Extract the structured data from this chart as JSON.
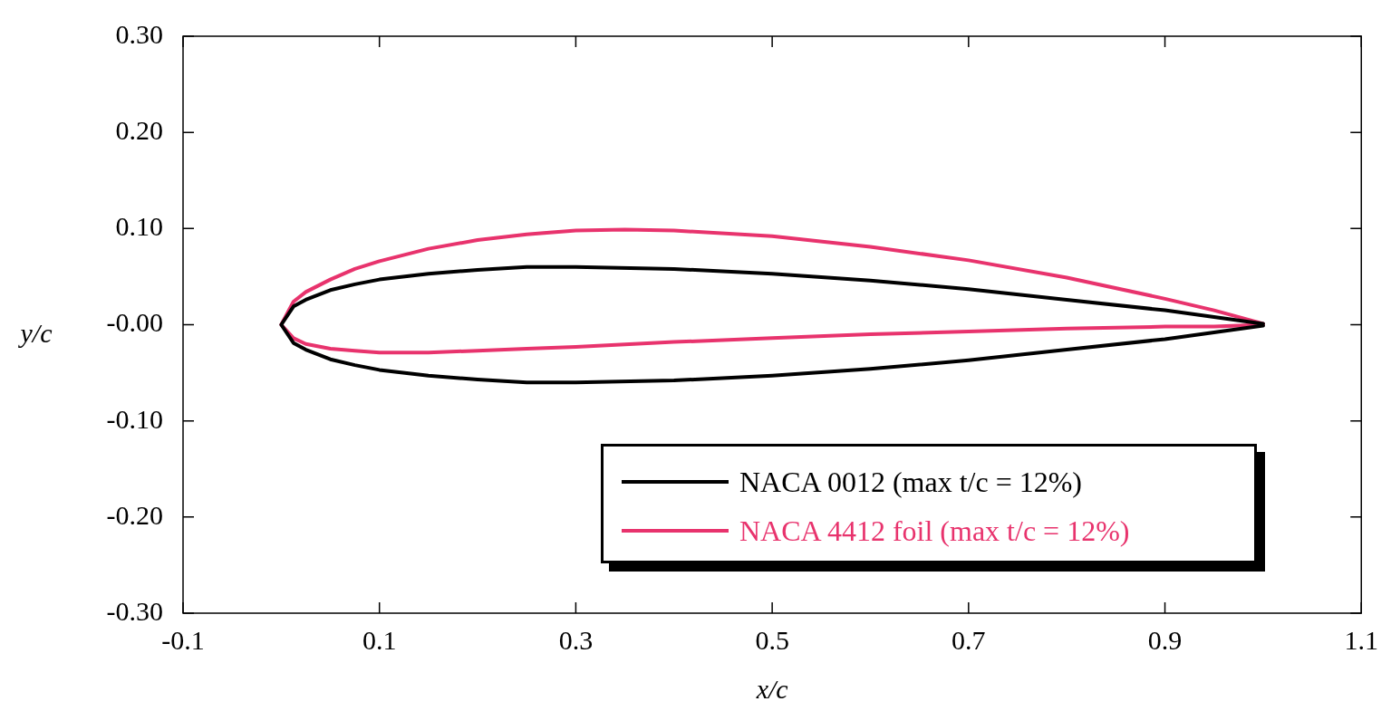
{
  "chart_data": {
    "type": "line",
    "xlabel": "x/c",
    "ylabel": "y/c",
    "xlim": [
      -0.1,
      1.1
    ],
    "xticks": [
      -0.1,
      0.1,
      0.3,
      0.5,
      0.7,
      0.9,
      1.1
    ],
    "ylim": [
      -0.3,
      0.3
    ],
    "yticks": [
      {
        "value": 0.3,
        "label": "0.30"
      },
      {
        "value": 0.2,
        "label": "0.20"
      },
      {
        "value": 0.1,
        "label": "0.10"
      },
      {
        "value": 0,
        "label": "-0.00"
      },
      {
        "value": -0.1,
        "label": "-0.10"
      },
      {
        "value": -0.2,
        "label": "-0.20"
      },
      {
        "value": -0.3,
        "label": "-0.30"
      }
    ],
    "grid": false,
    "legend": "bottom right",
    "marker": "none",
    "line_style": "solid",
    "series": [
      {
        "name": "NACA 0012 (max t/c = 12%)",
        "color": "#000000",
        "x": [
          1.0,
          0.95,
          0.9,
          0.8,
          0.7,
          0.6,
          0.5,
          0.4,
          0.3,
          0.25,
          0.2,
          0.15,
          0.1,
          0.075,
          0.05,
          0.025,
          0.0125,
          0.0,
          0.0125,
          0.025,
          0.05,
          0.075,
          0.1,
          0.15,
          0.2,
          0.25,
          0.3,
          0.4,
          0.5,
          0.6,
          0.7,
          0.8,
          0.9,
          0.95,
          1.0
        ],
        "values": [
          0.001,
          0.008,
          0.015,
          0.026,
          0.037,
          0.046,
          0.053,
          0.058,
          0.06,
          0.06,
          0.057,
          0.053,
          0.047,
          0.042,
          0.036,
          0.026,
          0.019,
          0.0,
          -0.019,
          -0.026,
          -0.036,
          -0.042,
          -0.047,
          -0.053,
          -0.057,
          -0.06,
          -0.06,
          -0.058,
          -0.053,
          -0.046,
          -0.037,
          -0.026,
          -0.015,
          -0.008,
          -0.001
        ]
      },
      {
        "name": "NACA 4412 foil (max t/c = 12%)",
        "color": "#e8336d",
        "x": [
          1.0,
          0.95,
          0.9,
          0.8,
          0.7,
          0.6,
          0.5,
          0.4,
          0.35,
          0.3,
          0.25,
          0.2,
          0.15,
          0.1,
          0.075,
          0.05,
          0.025,
          0.0125,
          0.0,
          0.0125,
          0.025,
          0.05,
          0.075,
          0.1,
          0.15,
          0.2,
          0.25,
          0.3,
          0.4,
          0.5,
          0.6,
          0.7,
          0.8,
          0.9,
          0.95,
          1.0
        ],
        "values": [
          0.001,
          0.015,
          0.027,
          0.049,
          0.067,
          0.081,
          0.092,
          0.098,
          0.099,
          0.098,
          0.094,
          0.088,
          0.079,
          0.066,
          0.058,
          0.047,
          0.034,
          0.024,
          0.0,
          -0.014,
          -0.02,
          -0.025,
          -0.027,
          -0.029,
          -0.029,
          -0.027,
          -0.025,
          -0.023,
          -0.018,
          -0.014,
          -0.01,
          -0.007,
          -0.004,
          -0.002,
          -0.002,
          0.0
        ]
      }
    ]
  }
}
